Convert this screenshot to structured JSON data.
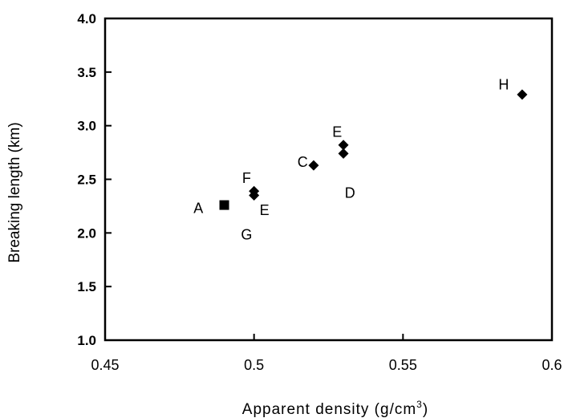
{
  "chart_data": {
    "type": "scatter",
    "title": "",
    "xlabel": "Apparent density (g/cm",
    "xlabel_sup": "3",
    "xlabel_end": ")",
    "ylabel": "Breaking length (km)",
    "xlim": [
      0.45,
      0.6
    ],
    "ylim": [
      1.0,
      4.0
    ],
    "x_ticks": [
      0.45,
      0.5,
      0.55,
      0.6
    ],
    "x_tick_labels": [
      "0.45",
      "0.5",
      "0.55",
      "0.6"
    ],
    "y_ticks": [
      1.0,
      1.5,
      2.0,
      2.5,
      3.0,
      3.5,
      4.0
    ],
    "y_tick_labels": [
      "1.0",
      "1.5",
      "2.0",
      "2.5",
      "3.0",
      "3.5",
      "4.0"
    ],
    "grid": false,
    "legend": "none",
    "points": [
      {
        "x": 0.49,
        "y": 2.26,
        "marker": "square"
      },
      {
        "x": 0.5,
        "y": 2.39,
        "marker": "diamond"
      },
      {
        "x": 0.5,
        "y": 2.35,
        "marker": "diamond"
      },
      {
        "x": 0.52,
        "y": 2.63,
        "marker": "diamond"
      },
      {
        "x": 0.53,
        "y": 2.82,
        "marker": "diamond"
      },
      {
        "x": 0.53,
        "y": 2.74,
        "marker": "diamond"
      },
      {
        "x": 0.59,
        "y": 3.29,
        "marker": "diamond"
      }
    ],
    "annotations": [
      {
        "text": "A",
        "x": 0.4813,
        "y": 2.24
      },
      {
        "text": "F",
        "x": 0.4975,
        "y": 2.52
      },
      {
        "text": "E",
        "x": 0.5035,
        "y": 2.22
      },
      {
        "text": "G",
        "x": 0.4975,
        "y": 1.99
      },
      {
        "text": "C",
        "x": 0.5163,
        "y": 2.67
      },
      {
        "text": "E",
        "x": 0.5279,
        "y": 2.95
      },
      {
        "text": "D",
        "x": 0.5322,
        "y": 2.38
      },
      {
        "text": "H",
        "x": 0.5838,
        "y": 3.39
      }
    ],
    "colors": {
      "marker": "#000000",
      "axis": "#000000"
    }
  }
}
